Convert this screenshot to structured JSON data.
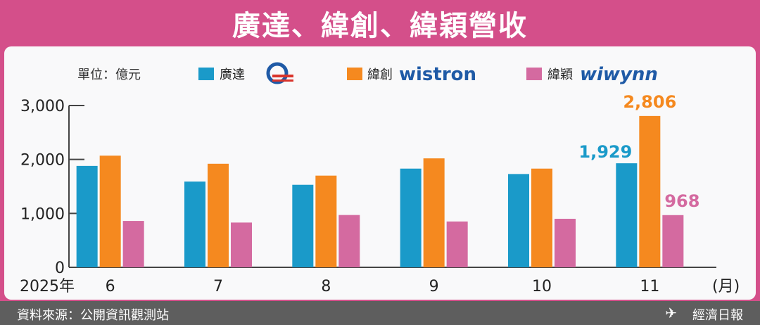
{
  "title": "廣達、緯創、緯穎營收",
  "unit_label": "單位：億元",
  "legend": [
    {
      "label": "廣達",
      "logo": "Q",
      "color": "#1a9ac9"
    },
    {
      "label": "緯創",
      "logo": "wistron",
      "color": "#f5891f"
    },
    {
      "label": "緯穎",
      "logo": "wiwynn",
      "color": "#d46aa0"
    }
  ],
  "footer": {
    "source": "資料來源：公開資訊觀測站",
    "publisher": "經濟日報",
    "publisher_icon": "paper-plane-icon"
  },
  "chart_data": {
    "type": "bar",
    "categories": [
      "6",
      "7",
      "8",
      "9",
      "10",
      "11"
    ],
    "x_prefix": "2025年",
    "xlabel": "(月)",
    "ylabel": "",
    "ylim": [
      0,
      3000
    ],
    "yticks": [
      "0",
      "1,000",
      "2,000",
      "3,000"
    ],
    "ytick_values": [
      0,
      1000,
      2000,
      3000
    ],
    "grid": false,
    "legend_position": "top",
    "series": [
      {
        "name": "廣達",
        "color": "#1a9ac9",
        "values": [
          1880,
          1590,
          1530,
          1830,
          1730,
          1929
        ]
      },
      {
        "name": "緯創",
        "color": "#f5891f",
        "values": [
          2070,
          1920,
          1700,
          2020,
          1830,
          2806
        ]
      },
      {
        "name": "緯穎",
        "color": "#d46aa0",
        "values": [
          860,
          830,
          970,
          850,
          900,
          968
        ]
      }
    ],
    "data_labels": [
      {
        "series": 0,
        "index": 5,
        "text": "1,929"
      },
      {
        "series": 1,
        "index": 5,
        "text": "2,806"
      },
      {
        "series": 2,
        "index": 5,
        "text": "968"
      }
    ]
  }
}
